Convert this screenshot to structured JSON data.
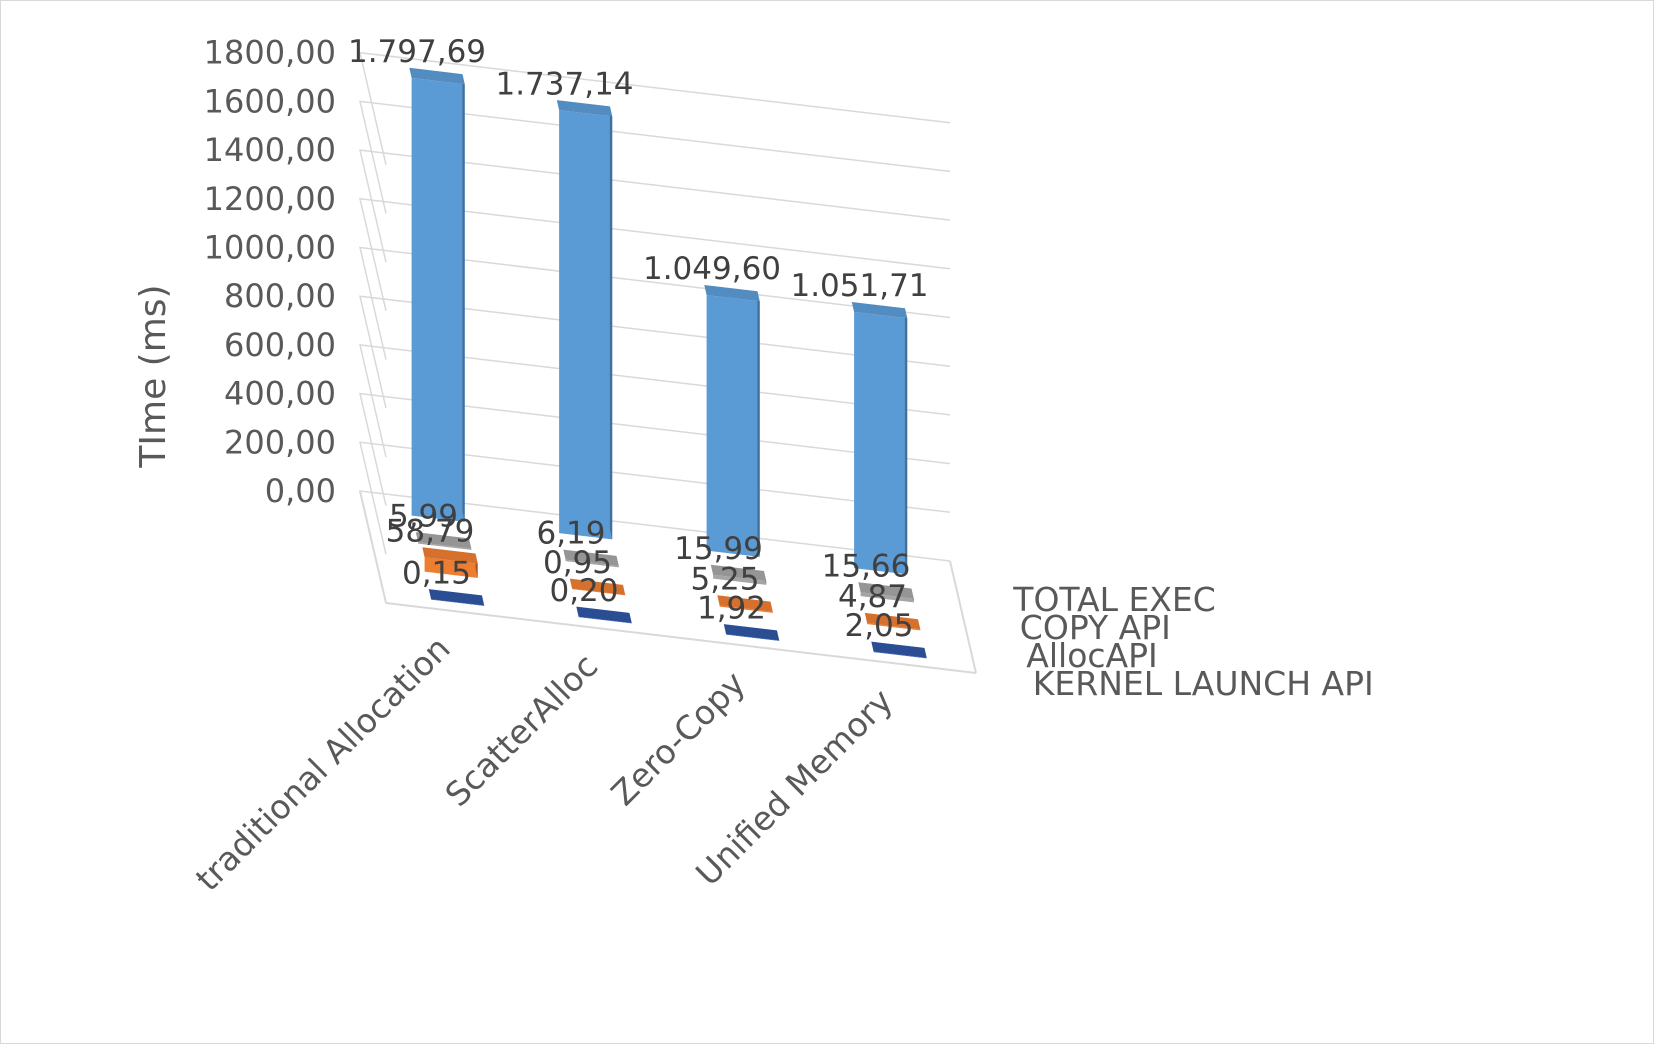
{
  "chart_data": {
    "type": "bar",
    "title": "",
    "ylabel": "TIme (ms)",
    "xlabel": "",
    "ylim": [
      0,
      1800
    ],
    "grid": true,
    "legend_position": "right",
    "y_ticks": [
      "0,00",
      "200,00",
      "400,00",
      "600,00",
      "800,00",
      "1000,00",
      "1200,00",
      "1400,00",
      "1600,00",
      "1800,00"
    ],
    "categories": [
      "traditional Allocation",
      "ScatterAlloc",
      "Zero-Copy",
      "Unified Memory"
    ],
    "series": [
      {
        "name": "KERNEL LAUNCH API",
        "values": [
          0.15,
          0.2,
          1.92,
          2.05
        ],
        "labels": [
          "0,15",
          "0,20",
          "1,92",
          "2,05"
        ],
        "color": "#2f55a4"
      },
      {
        "name": "AllocAPI",
        "values": [
          58.79,
          0.95,
          5.25,
          4.87
        ],
        "labels": [
          "58,79",
          "0,95",
          "5,25",
          "4,87"
        ],
        "color": "#ed7d31"
      },
      {
        "name": "COPY API",
        "values": [
          5.99,
          6.19,
          15.99,
          15.66
        ],
        "labels": [
          "5,99",
          "6,19",
          "15,99",
          "15,66"
        ],
        "color": "#a5a5a5"
      },
      {
        "name": "TOTAL EXEC",
        "values": [
          1797.69,
          1737.14,
          1049.6,
          1051.71
        ],
        "labels": [
          "1.797,69",
          "1.737,14",
          "1.049,60",
          "1.051,71"
        ],
        "color": "#5b9bd5"
      }
    ]
  }
}
